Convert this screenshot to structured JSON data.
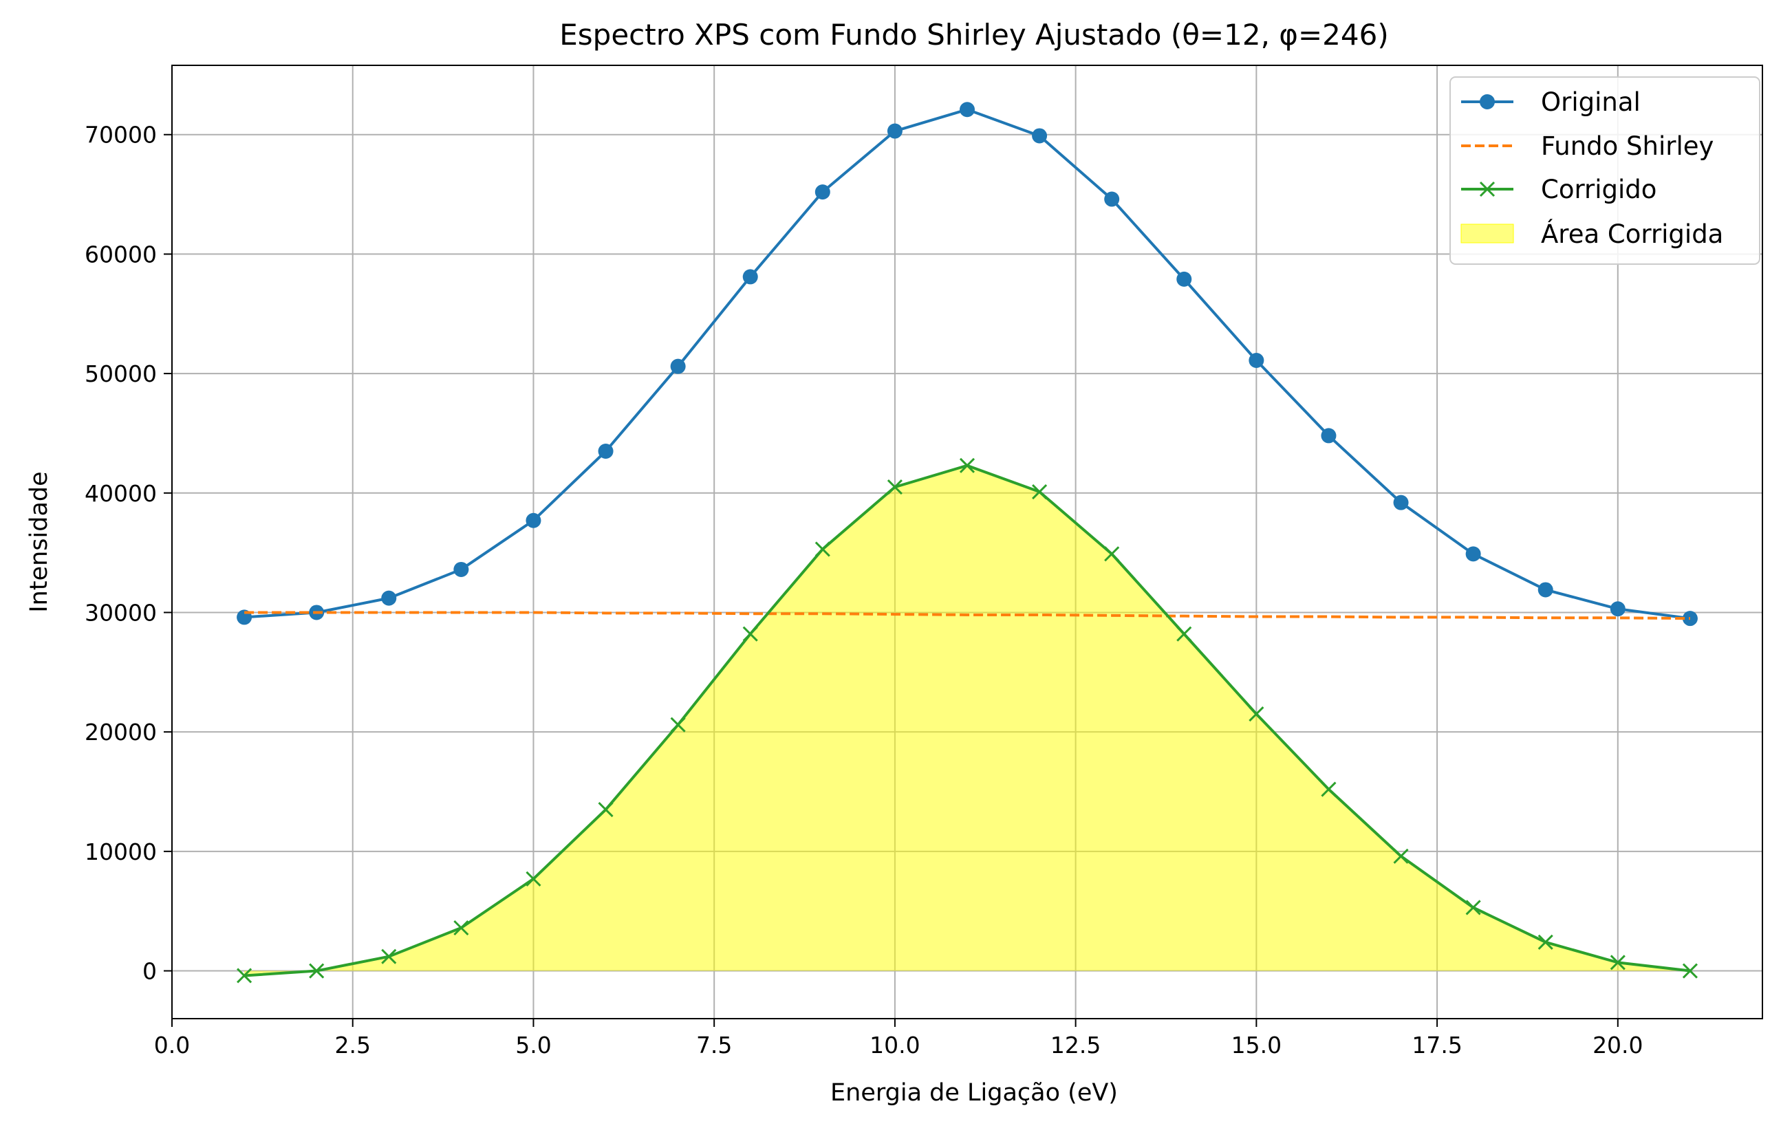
{
  "chart_data": {
    "type": "line",
    "title": "Espectro XPS com Fundo Shirley Ajustado (θ=12, φ=246)",
    "xlabel": "Energia de Ligação (eV)",
    "ylabel": "Intensidade",
    "xlim": [
      0,
      22
    ],
    "ylim": [
      -4000,
      75800
    ],
    "xticks": [
      0,
      2.5,
      5,
      7.5,
      10,
      12.5,
      15,
      17.5,
      20
    ],
    "xtick_labels": [
      "0.0",
      "2.5",
      "5.0",
      "7.5",
      "10.0",
      "12.5",
      "15.0",
      "17.5",
      "20.0"
    ],
    "yticks": [
      0,
      10000,
      20000,
      30000,
      40000,
      50000,
      60000,
      70000
    ],
    "ytick_labels": [
      "0",
      "10000",
      "20000",
      "30000",
      "40000",
      "50000",
      "60000",
      "70000"
    ],
    "grid": true,
    "legend_position": "top-right",
    "x": [
      1,
      2,
      3,
      4,
      5,
      6,
      7,
      8,
      9,
      10,
      11,
      12,
      13,
      14,
      15,
      16,
      17,
      18,
      19,
      20,
      21
    ],
    "series": [
      {
        "name": "Original",
        "style": "line-circle",
        "color": "#1f77b4",
        "values": [
          29600,
          30000,
          31200,
          33600,
          37700,
          43500,
          50600,
          58100,
          65200,
          70300,
          72100,
          69900,
          64600,
          57900,
          51100,
          44800,
          39200,
          34900,
          31900,
          30300,
          29500
        ]
      },
      {
        "name": "Fundo Shirley",
        "style": "dashed",
        "color": "#ff7f0e",
        "values": [
          30000,
          30000,
          30000,
          30000,
          30000,
          29950,
          29950,
          29900,
          29900,
          29850,
          29800,
          29800,
          29750,
          29700,
          29650,
          29650,
          29600,
          29600,
          29550,
          29550,
          29500
        ]
      },
      {
        "name": "Corrigido",
        "style": "line-x",
        "color": "#2ca02c",
        "values": [
          -400,
          0,
          1200,
          3600,
          7700,
          13500,
          20600,
          28200,
          35300,
          40500,
          42300,
          40100,
          34900,
          28200,
          21500,
          15200,
          9600,
          5300,
          2400,
          700,
          0
        ]
      }
    ],
    "fill": {
      "name": "Área Corrigida",
      "color": "#ffff00",
      "opacity": 0.5,
      "between": [
        "Corrigido",
        0
      ]
    }
  }
}
